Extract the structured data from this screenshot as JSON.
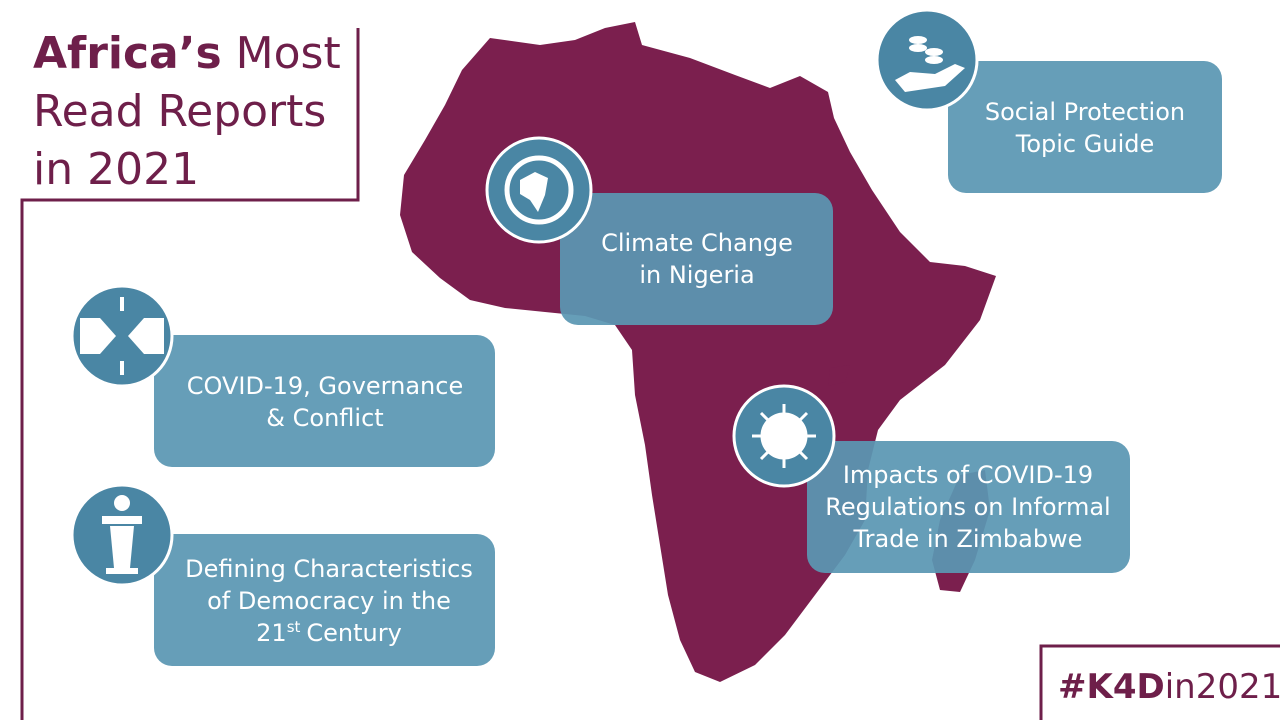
{
  "title": {
    "bold": "Africa’s",
    "rest": "Most",
    "line2": "Read Reports",
    "line3": "in 2021"
  },
  "reports": [
    {
      "lines": [
        "Social Protection",
        "Topic Guide"
      ]
    },
    {
      "lines": [
        "Climate Change",
        "in Nigeria"
      ]
    },
    {
      "lines": [
        "COVID-19, Governance",
        "& Conflict"
      ]
    },
    {
      "lines": [
        "Impacts of COVID-19",
        "Regulations on Informal",
        "Trade in Zimbabwe"
      ]
    },
    {
      "lines": [
        "Defining Characteristics",
        "of Democracy in the"
      ],
      "ordinal": "21",
      "ordinal_suffix": "st",
      "ordinal_tail": "Century"
    }
  ],
  "hashtag": {
    "bold": "#K4D",
    "rest": "in2021"
  }
}
